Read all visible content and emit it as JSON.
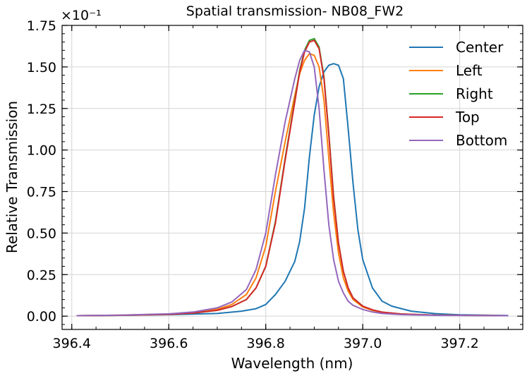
{
  "chart_data": {
    "type": "line",
    "title": "Spatial transmission- NB08_FW2",
    "xlabel": "Wavelength (nm)",
    "ylabel": "Relative Transmission",
    "multiplier": "×10⁻¹",
    "xlim": [
      396.38,
      397.33
    ],
    "ylim": [
      -0.08,
      1.75
    ],
    "xticks": [
      396.4,
      396.6,
      396.8,
      397.0,
      397.2
    ],
    "xtick_labels": [
      "396.4",
      "396.6",
      "396.8",
      "397.0",
      "397.2"
    ],
    "yticks": [
      0.0,
      0.25,
      0.5,
      0.75,
      1.0,
      1.25,
      1.5,
      1.75
    ],
    "ytick_labels": [
      "0.00",
      "0.25",
      "0.50",
      "0.75",
      "1.00",
      "1.25",
      "1.50",
      "1.75"
    ],
    "grid": true,
    "legend_position": "top-right",
    "series": [
      {
        "name": "Center",
        "color": "#1f77b4",
        "x": [
          396.41,
          396.5,
          396.6,
          396.7,
          396.75,
          396.78,
          396.8,
          396.82,
          396.84,
          396.86,
          396.87,
          396.88,
          396.89,
          396.9,
          396.91,
          396.92,
          396.93,
          396.94,
          396.95,
          396.96,
          396.97,
          396.98,
          396.99,
          397.0,
          397.02,
          397.04,
          397.06,
          397.1,
          397.15,
          397.2,
          397.3
        ],
        "y": [
          0.003,
          0.005,
          0.009,
          0.016,
          0.03,
          0.045,
          0.07,
          0.13,
          0.21,
          0.33,
          0.45,
          0.65,
          0.96,
          1.21,
          1.38,
          1.47,
          1.51,
          1.52,
          1.51,
          1.43,
          1.13,
          0.8,
          0.52,
          0.34,
          0.17,
          0.09,
          0.06,
          0.03,
          0.015,
          0.008,
          0.004
        ]
      },
      {
        "name": "Left",
        "color": "#ff7f0e",
        "x": [
          396.41,
          396.5,
          396.6,
          396.65,
          396.7,
          396.73,
          396.76,
          396.78,
          396.8,
          396.82,
          396.84,
          396.86,
          396.87,
          396.88,
          396.89,
          396.9,
          396.91,
          396.92,
          396.93,
          396.94,
          396.95,
          396.96,
          396.97,
          396.98,
          397.0,
          397.02,
          397.04,
          397.08,
          397.15,
          397.3
        ],
        "y": [
          0.003,
          0.006,
          0.013,
          0.022,
          0.042,
          0.07,
          0.13,
          0.23,
          0.42,
          0.75,
          1.05,
          1.33,
          1.46,
          1.54,
          1.58,
          1.57,
          1.5,
          1.3,
          0.95,
          0.62,
          0.38,
          0.23,
          0.15,
          0.1,
          0.055,
          0.035,
          0.022,
          0.012,
          0.006,
          0.003
        ]
      },
      {
        "name": "Right",
        "color": "#2ca02c",
        "x": [
          396.41,
          396.5,
          396.6,
          396.65,
          396.7,
          396.73,
          396.76,
          396.78,
          396.8,
          396.82,
          396.84,
          396.86,
          396.87,
          396.88,
          396.89,
          396.9,
          396.91,
          396.92,
          396.93,
          396.94,
          396.95,
          396.96,
          396.97,
          396.98,
          397.0,
          397.02,
          397.04,
          397.08,
          397.15,
          397.3
        ],
        "y": [
          0.003,
          0.005,
          0.011,
          0.019,
          0.035,
          0.058,
          0.1,
          0.17,
          0.3,
          0.57,
          0.95,
          1.3,
          1.48,
          1.6,
          1.66,
          1.67,
          1.62,
          1.44,
          1.1,
          0.72,
          0.44,
          0.27,
          0.17,
          0.11,
          0.06,
          0.038,
          0.024,
          0.013,
          0.006,
          0.003
        ]
      },
      {
        "name": "Top",
        "color": "#d62728",
        "x": [
          396.41,
          396.5,
          396.6,
          396.65,
          396.7,
          396.73,
          396.76,
          396.78,
          396.8,
          396.82,
          396.84,
          396.86,
          396.87,
          396.88,
          396.89,
          396.9,
          396.91,
          396.92,
          396.93,
          396.94,
          396.95,
          396.96,
          396.97,
          396.98,
          397.0,
          397.02,
          397.04,
          397.08,
          397.15,
          397.3
        ],
        "y": [
          0.003,
          0.005,
          0.011,
          0.019,
          0.035,
          0.058,
          0.1,
          0.17,
          0.3,
          0.56,
          0.94,
          1.29,
          1.47,
          1.59,
          1.65,
          1.66,
          1.61,
          1.43,
          1.09,
          0.71,
          0.44,
          0.27,
          0.17,
          0.11,
          0.06,
          0.038,
          0.024,
          0.013,
          0.006,
          0.003
        ]
      },
      {
        "name": "Bottom",
        "color": "#9467bd",
        "x": [
          396.41,
          396.5,
          396.6,
          396.65,
          396.7,
          396.73,
          396.76,
          396.78,
          396.8,
          396.82,
          396.84,
          396.86,
          396.87,
          396.88,
          396.89,
          396.9,
          396.91,
          396.92,
          396.93,
          396.94,
          396.95,
          396.96,
          396.97,
          396.98,
          397.0,
          397.02,
          397.04,
          397.08,
          397.15,
          397.3
        ],
        "y": [
          0.003,
          0.006,
          0.014,
          0.025,
          0.05,
          0.085,
          0.16,
          0.28,
          0.5,
          0.85,
          1.17,
          1.43,
          1.54,
          1.6,
          1.59,
          1.5,
          1.25,
          0.88,
          0.55,
          0.34,
          0.21,
          0.14,
          0.09,
          0.065,
          0.04,
          0.025,
          0.016,
          0.009,
          0.005,
          0.003
        ]
      }
    ]
  }
}
